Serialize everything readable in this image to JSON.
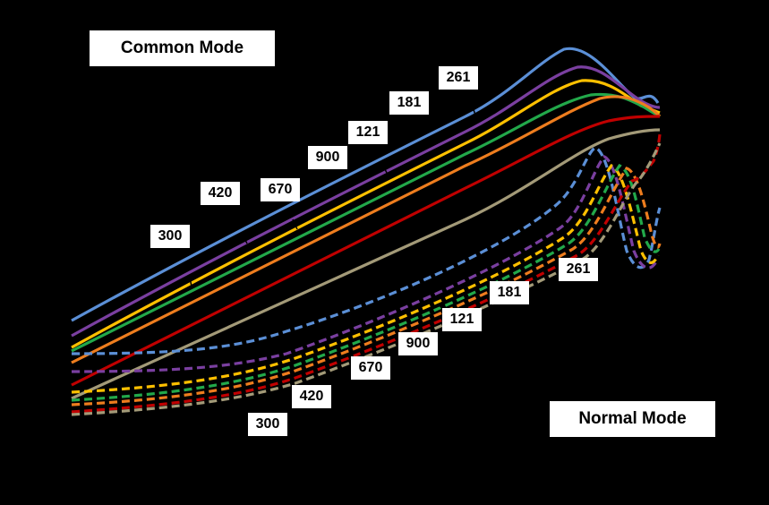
{
  "titles": {
    "common_mode": "Common Mode",
    "normal_mode": "Normal Mode"
  },
  "chart_data": {
    "type": "line",
    "title": "",
    "xlabel": "",
    "ylabel": "",
    "grid": false,
    "background": "#000000",
    "groups": [
      {
        "name": "Common Mode",
        "line_style": "solid",
        "series": [
          {
            "label": "261",
            "color": "#5b8fd6",
            "y": [
              72.0,
              84.0,
              100.6,
              117.4,
              134.5,
              151.2,
              168.2,
              185.4,
              202.1,
              218.3,
              233.6,
              236.0,
              237.5,
              226.0,
              222.0
            ]
          },
          {
            "label": "181",
            "color": "#7a3fa0",
            "y": [
              62.0,
              75.0,
              91.3,
              108.1,
              125.4,
              142.3,
              159.1,
              175.9,
              192.6,
              207.8,
              222.5,
              224.0,
              222.0,
              214.0,
              210.0
            ]
          },
          {
            "label": "121",
            "color": "#ffc000",
            "y": [
              53.0,
              66.0,
              82.0,
              98.7,
              115.8,
              132.9,
              149.6,
              166.3,
              182.7,
              198.3,
              211.5,
              213.0,
              212.0,
              208.0,
              206.0
            ]
          },
          {
            "label": "900",
            "color": "#22a84a",
            "y": [
              46.0,
              58.7,
              74.7,
              91.2,
              108.1,
              124.9,
              141.5,
              158.0,
              174.2,
              189.3,
              199.5,
              203.5,
              205.0,
              203.0,
              201.0
            ]
          },
          {
            "label": "670",
            "color": "#ee7d1e",
            "y": [
              35.0,
              48.3,
              64.6,
              80.7,
              97.1,
              113.8,
              130.2,
              146.3,
              161.8,
              176.9,
              188.8,
              194.0,
              196.0,
              195.0,
              193.0
            ]
          },
          {
            "label": "420",
            "color": "#c00000",
            "y": 0.0,
            "values": [
              15.0,
              28.5,
              44.9,
              60.2,
              75.8,
              91.7,
              107.6,
              123.0,
              138.0,
              152.4,
              165.6,
              174.0,
              180.0,
              184.0,
              186.0
            ]
          },
          {
            "label": "300",
            "color": "#a39a78",
            "y_values": [
              0.0,
              12.0,
              26.5,
              40.2,
              55.3,
              70.3,
              86.0,
              101.0,
              115.5,
              129.5,
              143.0,
              154.0,
              162.0,
              166.0,
              168.0
            ]
          }
        ]
      },
      {
        "name": "Normal Mode",
        "line_style": "dashed",
        "series": [
          {
            "label": "261",
            "color": "#5b8fd6"
          },
          {
            "label": "181",
            "color": "#7a3fa0"
          },
          {
            "label": "121",
            "color": "#ffc000"
          },
          {
            "label": "900",
            "color": "#22a84a"
          },
          {
            "label": "670",
            "color": "#ee7d1e"
          },
          {
            "label": "420",
            "color": "#c00000"
          },
          {
            "label": "300",
            "color": "#a39a78"
          }
        ]
      }
    ]
  },
  "labels": {
    "common": [
      "300",
      "420",
      "670",
      "900",
      "121",
      "181",
      "261"
    ],
    "normal": [
      "261",
      "181",
      "121",
      "900",
      "670",
      "420",
      "300"
    ]
  }
}
